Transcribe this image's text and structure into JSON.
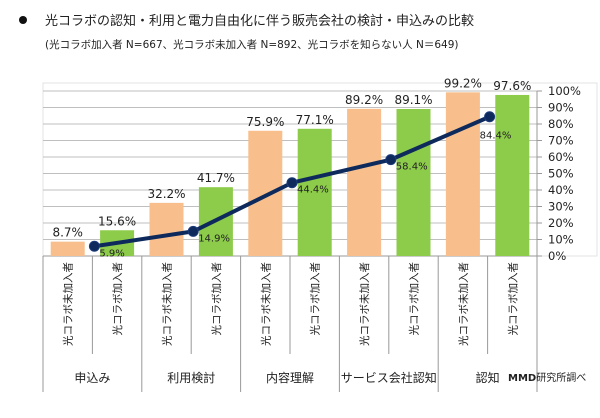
{
  "header": {
    "title": "光コラボの認知・利用と電力自由化に伴う販売会社の検討・申込みの比較",
    "subtitle": "(光コラボ加入者 N=667、光コラボ未加入者 N=892、光コラボを知らない人 N＝649)"
  },
  "source": {
    "brand": "MMD",
    "suffix": "研究所調べ"
  },
  "colors": {
    "non_subscriber": "#F8BE8C",
    "subscriber": "#8DCB4A",
    "line": "#0E2A5C",
    "grid": "#BFBFBF"
  },
  "chart_data": {
    "type": "bar",
    "title": "光コラボの認知・利用と電力自由化に伴う販売会社の検討・申込みの比較",
    "subtitle": "(光コラボ加入者 N=667、光コラボ未加入者 N=892、光コラボを知らない人 N＝649)",
    "groups": [
      "申込み",
      "利用検討",
      "内容理解",
      "サービス会社認知",
      "認知"
    ],
    "categories": [
      "光コラボ未加入者",
      "光コラボ加入者"
    ],
    "series": [
      {
        "name": "光コラボ未加入者",
        "type": "bar",
        "values": [
          8.7,
          32.2,
          75.9,
          89.2,
          99.2
        ],
        "labels": [
          "8.7%",
          "32.2%",
          "75.9%",
          "89.2%",
          "99.2%"
        ]
      },
      {
        "name": "光コラボ加入者",
        "type": "bar",
        "values": [
          15.6,
          41.7,
          77.1,
          89.1,
          97.6
        ],
        "labels": [
          "15.6%",
          "41.7%",
          "77.1%",
          "89.1%",
          "97.6%"
        ]
      },
      {
        "name": "line",
        "type": "line",
        "values": [
          5.9,
          14.9,
          44.4,
          58.4,
          84.4
        ],
        "labels": [
          "5.9%",
          "14.9%",
          "44.4%",
          "58.4%",
          "84.4%"
        ]
      }
    ],
    "ylim": [
      0,
      100
    ],
    "yticks": [
      "0%",
      "10%",
      "20%",
      "30%",
      "40%",
      "50%",
      "60%",
      "70%",
      "80%",
      "90%",
      "100%"
    ],
    "yaxis_position": "right",
    "grid": true,
    "xlabel": "",
    "ylabel": ""
  }
}
